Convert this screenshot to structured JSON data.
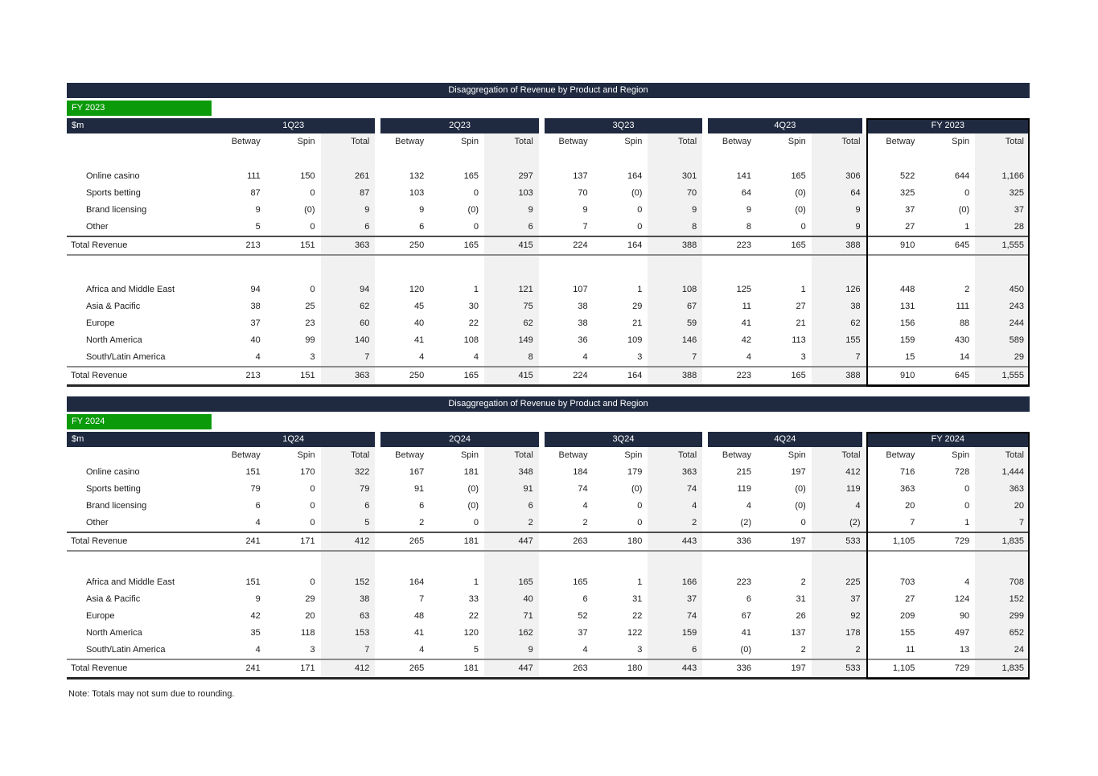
{
  "colors": {
    "navy": "#1f2a40",
    "green": "#0a9a0a",
    "total_column_bg": "#f1f1f1"
  },
  "note": "Note: Totals may not sum due to rounding.",
  "tables": [
    {
      "title": "Disaggregation of Revenue by Product and Region",
      "fy_label": "FY 2023",
      "unit_label": "$m",
      "quarter_headers": [
        "1Q23",
        "2Q23",
        "3Q23",
        "4Q23",
        "FY 2023"
      ],
      "sub_headers": [
        "Betway",
        "Spin",
        "Total"
      ],
      "product_rows": [
        {
          "label": "Online casino",
          "values": [
            "111",
            "150",
            "261",
            "132",
            "165",
            "297",
            "137",
            "164",
            "301",
            "141",
            "165",
            "306",
            "522",
            "644",
            "1,166"
          ]
        },
        {
          "label": "Sports betting",
          "values": [
            "87",
            "0",
            "87",
            "103",
            "0",
            "103",
            "70",
            "(0)",
            "70",
            "64",
            "(0)",
            "64",
            "325",
            "0",
            "325"
          ]
        },
        {
          "label": "Brand licensing",
          "values": [
            "9",
            "(0)",
            "9",
            "9",
            "(0)",
            "9",
            "9",
            "0",
            "9",
            "9",
            "(0)",
            "9",
            "37",
            "(0)",
            "37"
          ]
        },
        {
          "label": "Other",
          "values": [
            "5",
            "0",
            "6",
            "6",
            "0",
            "6",
            "7",
            "0",
            "8",
            "8",
            "0",
            "9",
            "27",
            "1",
            "28"
          ]
        }
      ],
      "product_total": {
        "label": "Total Revenue",
        "values": [
          "213",
          "151",
          "363",
          "250",
          "165",
          "415",
          "224",
          "164",
          "388",
          "223",
          "165",
          "388",
          "910",
          "645",
          "1,555"
        ]
      },
      "region_rows": [
        {
          "label": "Africa and Middle East",
          "values": [
            "94",
            "0",
            "94",
            "120",
            "1",
            "121",
            "107",
            "1",
            "108",
            "125",
            "1",
            "126",
            "448",
            "2",
            "450"
          ]
        },
        {
          "label": "Asia & Pacific",
          "values": [
            "38",
            "25",
            "62",
            "45",
            "30",
            "75",
            "38",
            "29",
            "67",
            "11",
            "27",
            "38",
            "131",
            "111",
            "243"
          ]
        },
        {
          "label": "Europe",
          "values": [
            "37",
            "23",
            "60",
            "40",
            "22",
            "62",
            "38",
            "21",
            "59",
            "41",
            "21",
            "62",
            "156",
            "88",
            "244"
          ]
        },
        {
          "label": "North America",
          "values": [
            "40",
            "99",
            "140",
            "41",
            "108",
            "149",
            "36",
            "109",
            "146",
            "42",
            "113",
            "155",
            "159",
            "430",
            "589"
          ]
        },
        {
          "label": "South/Latin America",
          "values": [
            "4",
            "3",
            "7",
            "4",
            "4",
            "8",
            "4",
            "3",
            "7",
            "4",
            "3",
            "7",
            "15",
            "14",
            "29"
          ]
        }
      ],
      "region_total": {
        "label": "Total Revenue",
        "values": [
          "213",
          "151",
          "363",
          "250",
          "165",
          "415",
          "224",
          "164",
          "388",
          "223",
          "165",
          "388",
          "910",
          "645",
          "1,555"
        ]
      }
    },
    {
      "title": "Disaggregation of Revenue by Product and Region",
      "fy_label": "FY 2024",
      "unit_label": "$m",
      "quarter_headers": [
        "1Q24",
        "2Q24",
        "3Q24",
        "4Q24",
        "FY 2024"
      ],
      "sub_headers": [
        "Betway",
        "Spin",
        "Total"
      ],
      "product_rows": [
        {
          "label": "Online casino",
          "values": [
            "151",
            "170",
            "322",
            "167",
            "181",
            "348",
            "184",
            "179",
            "363",
            "215",
            "197",
            "412",
            "716",
            "728",
            "1,444"
          ]
        },
        {
          "label": "Sports betting",
          "values": [
            "79",
            "0",
            "79",
            "91",
            "(0)",
            "91",
            "74",
            "(0)",
            "74",
            "119",
            "(0)",
            "119",
            "363",
            "0",
            "363"
          ]
        },
        {
          "label": "Brand licensing",
          "values": [
            "6",
            "0",
            "6",
            "6",
            "(0)",
            "6",
            "4",
            "0",
            "4",
            "4",
            "(0)",
            "4",
            "20",
            "0",
            "20"
          ]
        },
        {
          "label": "Other",
          "values": [
            "4",
            "0",
            "5",
            "2",
            "0",
            "2",
            "2",
            "0",
            "2",
            "(2)",
            "0",
            "(2)",
            "7",
            "1",
            "7"
          ]
        }
      ],
      "product_total": {
        "label": "Total Revenue",
        "values": [
          "241",
          "171",
          "412",
          "265",
          "181",
          "447",
          "263",
          "180",
          "443",
          "336",
          "197",
          "533",
          "1,105",
          "729",
          "1,835"
        ]
      },
      "region_rows": [
        {
          "label": "Africa and Middle East",
          "values": [
            "151",
            "0",
            "152",
            "164",
            "1",
            "165",
            "165",
            "1",
            "166",
            "223",
            "2",
            "225",
            "703",
            "4",
            "708"
          ]
        },
        {
          "label": "Asia & Pacific",
          "values": [
            "9",
            "29",
            "38",
            "7",
            "33",
            "40",
            "6",
            "31",
            "37",
            "6",
            "31",
            "37",
            "27",
            "124",
            "152"
          ]
        },
        {
          "label": "Europe",
          "values": [
            "42",
            "20",
            "63",
            "48",
            "22",
            "71",
            "52",
            "22",
            "74",
            "67",
            "26",
            "92",
            "209",
            "90",
            "299"
          ]
        },
        {
          "label": "North America",
          "values": [
            "35",
            "118",
            "153",
            "41",
            "120",
            "162",
            "37",
            "122",
            "159",
            "41",
            "137",
            "178",
            "155",
            "497",
            "652"
          ]
        },
        {
          "label": "South/Latin America",
          "values": [
            "4",
            "3",
            "7",
            "4",
            "5",
            "9",
            "4",
            "3",
            "6",
            "(0)",
            "2",
            "2",
            "11",
            "13",
            "24"
          ]
        }
      ],
      "region_total": {
        "label": "Total Revenue",
        "values": [
          "241",
          "171",
          "412",
          "265",
          "181",
          "447",
          "263",
          "180",
          "443",
          "336",
          "197",
          "533",
          "1,105",
          "729",
          "1,835"
        ]
      }
    }
  ]
}
